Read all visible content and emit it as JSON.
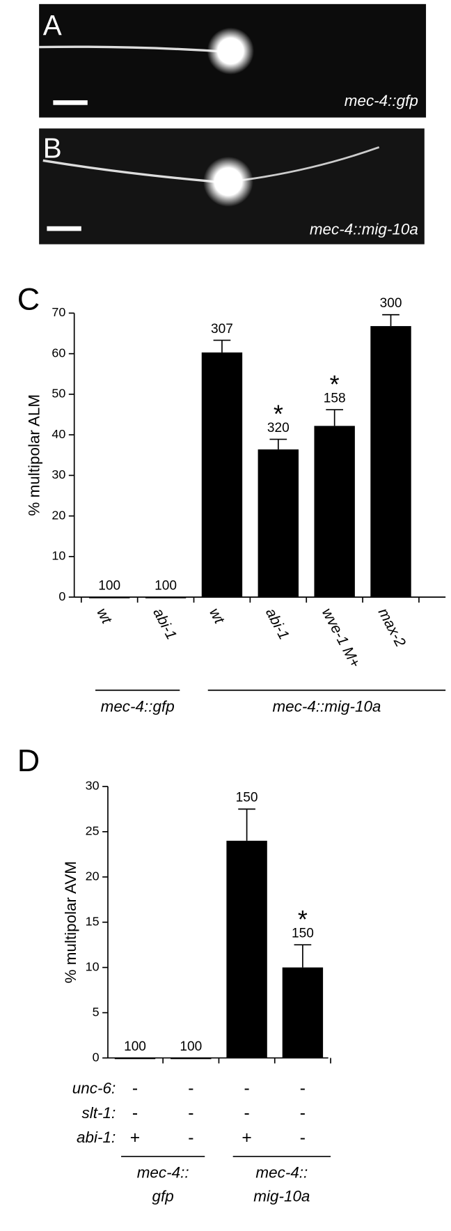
{
  "panels": [
    {
      "label": "A",
      "caption": "mec-4::gfp"
    },
    {
      "label": "B",
      "caption": "mec-4::mig-10a"
    }
  ],
  "chart_data": [
    {
      "type": "bar",
      "panel_label": "C",
      "y_label": "% multipolar ALM",
      "categories": [
        "wt",
        "abi-1",
        "wt",
        "abi-1",
        "wve-1 M+",
        "max-2"
      ],
      "values": [
        0,
        0,
        60.3,
        36.4,
        42.2,
        66.8
      ],
      "errors": [
        0,
        0,
        3,
        2.5,
        4,
        2.8
      ],
      "n_labels": [
        "100",
        "100",
        "307",
        "320",
        "158",
        "300"
      ],
      "significance": [
        null,
        null,
        null,
        "*",
        "*",
        null
      ],
      "groups": [
        {
          "label": [
            "mec-4::gfp"
          ],
          "span": 2
        },
        {
          "label": [
            "mec-4::mig-10a"
          ],
          "span": 4
        }
      ],
      "color": "#000000",
      "ylim": [
        0,
        70
      ],
      "yticks": [
        0,
        10,
        20,
        30,
        40,
        50,
        60,
        70
      ]
    },
    {
      "type": "bar",
      "panel_label": "D",
      "y_label": "% multipolar AVM",
      "categories": [
        null,
        null,
        null,
        null
      ],
      "values": [
        0,
        0,
        24,
        10
      ],
      "errors": [
        0,
        0,
        3.5,
        2.5
      ],
      "n_labels": [
        "100",
        "100",
        "150",
        "150"
      ],
      "significance": [
        null,
        null,
        null,
        "*"
      ],
      "genotype_rows": [
        {
          "label": "unc-6:",
          "values": [
            "-",
            "-",
            "-",
            "-"
          ]
        },
        {
          "label": "slt-1:",
          "values": [
            "-",
            "-",
            "-",
            "-"
          ]
        },
        {
          "label": "abi-1:",
          "values": [
            "+",
            "-",
            "+",
            "-"
          ]
        }
      ],
      "groups": [
        {
          "label": [
            "mec-4::",
            "gfp"
          ],
          "span": 2
        },
        {
          "label": [
            "mec-4::",
            "mig-10a"
          ],
          "span": 2
        }
      ],
      "color": "#000000",
      "ylim": [
        0,
        30
      ],
      "yticks": [
        0,
        5,
        10,
        15,
        20,
        25,
        30
      ]
    }
  ]
}
